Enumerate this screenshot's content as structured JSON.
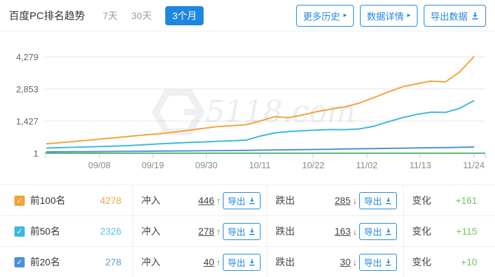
{
  "header": {
    "title": "百度PC排名趋势",
    "range_tabs": [
      {
        "label": "7天",
        "active": false
      },
      {
        "label": "30天",
        "active": false
      },
      {
        "label": "3个月",
        "active": true
      }
    ],
    "buttons": [
      {
        "label": "更多历史",
        "icon": "chevron-right-icon"
      },
      {
        "label": "数据详情",
        "icon": "chevron-right-icon"
      },
      {
        "label": "导出数据",
        "icon": "download-icon"
      }
    ]
  },
  "palette": {
    "accent_blue": "#2289E5",
    "tab_active_bg": "#1E87E0",
    "up_green": "#2FA84F",
    "down_red": "#E23B33",
    "change_green": "#72C45E",
    "grid_gray": "#e4e4e4"
  },
  "icons": {
    "up": "↑",
    "down": "↓",
    "chevron": "▸",
    "check": "✓"
  },
  "chart_data": {
    "type": "line",
    "title": "百度PC排名趋势（3个月）",
    "watermark": "5118.com",
    "x_tick_labels": [
      "09/08",
      "09/19",
      "09/30",
      "10/11",
      "10/22",
      "11/02",
      "11/13",
      "11/24"
    ],
    "y_tick_labels": [
      "4,279",
      "2,853",
      "1,427",
      "1"
    ],
    "ylim": [
      1,
      4279
    ],
    "grid": true,
    "axis_line_color": "#57BB72",
    "series": [
      {
        "name": "前100名",
        "color": "#F7A139",
        "values": [
          420,
          470,
          530,
          580,
          640,
          700,
          760,
          820,
          870,
          940,
          1020,
          1100,
          1180,
          1220,
          1260,
          1430,
          1620,
          1580,
          1700,
          1850,
          1960,
          2060,
          2230,
          2470,
          2720,
          2950,
          3080,
          3200,
          3160,
          3600,
          4278
        ]
      },
      {
        "name": "前50名",
        "color": "#3CB8E0",
        "values": [
          230,
          248,
          265,
          282,
          300,
          320,
          348,
          382,
          420,
          450,
          478,
          500,
          528,
          550,
          580,
          760,
          900,
          960,
          1000,
          1030,
          1050,
          1045,
          1080,
          1200,
          1400,
          1580,
          1720,
          1820,
          1810,
          1990,
          2326
        ]
      },
      {
        "name": "前20名",
        "color": "#4E8FD9",
        "values": [
          60,
          64,
          68,
          72,
          76,
          80,
          85,
          90,
          95,
          100,
          105,
          110,
          115,
          120,
          126,
          138,
          148,
          154,
          160,
          168,
          178,
          188,
          197,
          207,
          216,
          226,
          235,
          245,
          252,
          263,
          278
        ]
      }
    ]
  },
  "table": {
    "surge_label": "冲入",
    "drop_label": "跌出",
    "change_label": "变化",
    "export_label": "导出",
    "rows": [
      {
        "name": "前100名",
        "checkbox_color": "#F7A139",
        "count": "4278",
        "count_color": "#F2A24D",
        "surge_value": "446",
        "drop_value": "285",
        "change_value": "+161"
      },
      {
        "name": "前50名",
        "checkbox_color": "#3CB8E0",
        "count": "2326",
        "count_color": "#52C3E2",
        "surge_value": "278",
        "drop_value": "163",
        "change_value": "+115"
      },
      {
        "name": "前20名",
        "checkbox_color": "#4E8FD9",
        "count": "278",
        "count_color": "#5B9BD8",
        "surge_value": "40",
        "drop_value": "30",
        "change_value": "+10"
      }
    ]
  }
}
